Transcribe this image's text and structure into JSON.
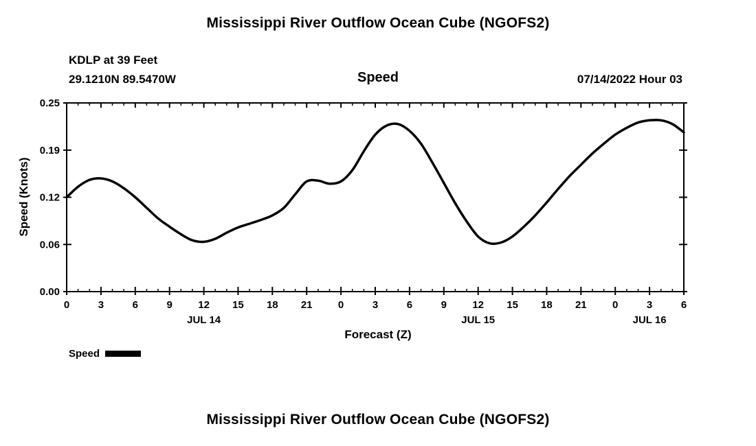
{
  "page": {
    "title_top": "Mississippi River Outflow Ocean Cube (NGOFS2)",
    "title_bottom": "Mississippi River Outflow Ocean Cube (NGOFS2)",
    "station_line1": "KDLP at 39 Feet",
    "station_line2": "29.1210N  89.5470W",
    "center_label": "Speed",
    "datetime_label": "07/14/2022 Hour 03",
    "xlabel": "Forecast (Z)",
    "ylabel": "Speed (Knots)",
    "legend_label": "Speed",
    "line_color": "#000000"
  },
  "chart_data": {
    "type": "line",
    "title": "Speed",
    "xlabel": "Forecast (Z)",
    "ylabel": "Speed (Knots)",
    "xlim": [
      0,
      54
    ],
    "ylim": [
      0,
      0.25
    ],
    "grid": false,
    "legend_position": "bottom-left",
    "y_ticks": [
      {
        "value": 0.0,
        "label": "0.00"
      },
      {
        "value": 0.0625,
        "label": "0.06"
      },
      {
        "value": 0.125,
        "label": "0.12"
      },
      {
        "value": 0.1875,
        "label": "0.19"
      },
      {
        "value": 0.25,
        "label": "0.25"
      }
    ],
    "x_major_ticks": [
      {
        "hour": 0,
        "label": "0"
      },
      {
        "hour": 3,
        "label": "3"
      },
      {
        "hour": 6,
        "label": "6"
      },
      {
        "hour": 9,
        "label": "9"
      },
      {
        "hour": 12,
        "label": "12"
      },
      {
        "hour": 15,
        "label": "15"
      },
      {
        "hour": 18,
        "label": "18"
      },
      {
        "hour": 21,
        "label": "21"
      },
      {
        "hour": 24,
        "label": "0"
      },
      {
        "hour": 27,
        "label": "3"
      },
      {
        "hour": 30,
        "label": "6"
      },
      {
        "hour": 33,
        "label": "9"
      },
      {
        "hour": 36,
        "label": "12"
      },
      {
        "hour": 39,
        "label": "15"
      },
      {
        "hour": 42,
        "label": "18"
      },
      {
        "hour": 45,
        "label": "21"
      },
      {
        "hour": 48,
        "label": "0"
      },
      {
        "hour": 51,
        "label": "3"
      },
      {
        "hour": 54,
        "label": "6"
      }
    ],
    "x_minor_tick_step": 1,
    "day_labels": [
      {
        "hour": 12,
        "label": "JUL 14"
      },
      {
        "hour": 36,
        "label": "JUL 15"
      },
      {
        "hour": 51,
        "label": "JUL 16"
      }
    ],
    "series": [
      {
        "name": "Speed",
        "x": [
          0,
          1,
          2,
          3,
          4,
          5,
          6,
          7,
          8,
          9,
          10,
          11,
          12,
          13,
          14,
          15,
          16,
          17,
          18,
          19,
          20,
          21,
          22,
          23,
          24,
          25,
          26,
          27,
          28,
          29,
          30,
          31,
          32,
          33,
          34,
          35,
          36,
          37,
          38,
          39,
          40,
          41,
          42,
          43,
          44,
          45,
          46,
          47,
          48,
          49,
          50,
          51,
          52,
          53,
          54
        ],
        "y": [
          0.125,
          0.139,
          0.148,
          0.15,
          0.146,
          0.137,
          0.125,
          0.111,
          0.097,
          0.086,
          0.076,
          0.068,
          0.066,
          0.07,
          0.078,
          0.085,
          0.09,
          0.095,
          0.101,
          0.111,
          0.129,
          0.146,
          0.147,
          0.143,
          0.146,
          0.161,
          0.186,
          0.208,
          0.22,
          0.222,
          0.213,
          0.196,
          0.171,
          0.144,
          0.117,
          0.093,
          0.073,
          0.064,
          0.065,
          0.073,
          0.086,
          0.101,
          0.118,
          0.136,
          0.153,
          0.168,
          0.183,
          0.196,
          0.208,
          0.217,
          0.224,
          0.227,
          0.227,
          0.222,
          0.211
        ]
      }
    ]
  }
}
